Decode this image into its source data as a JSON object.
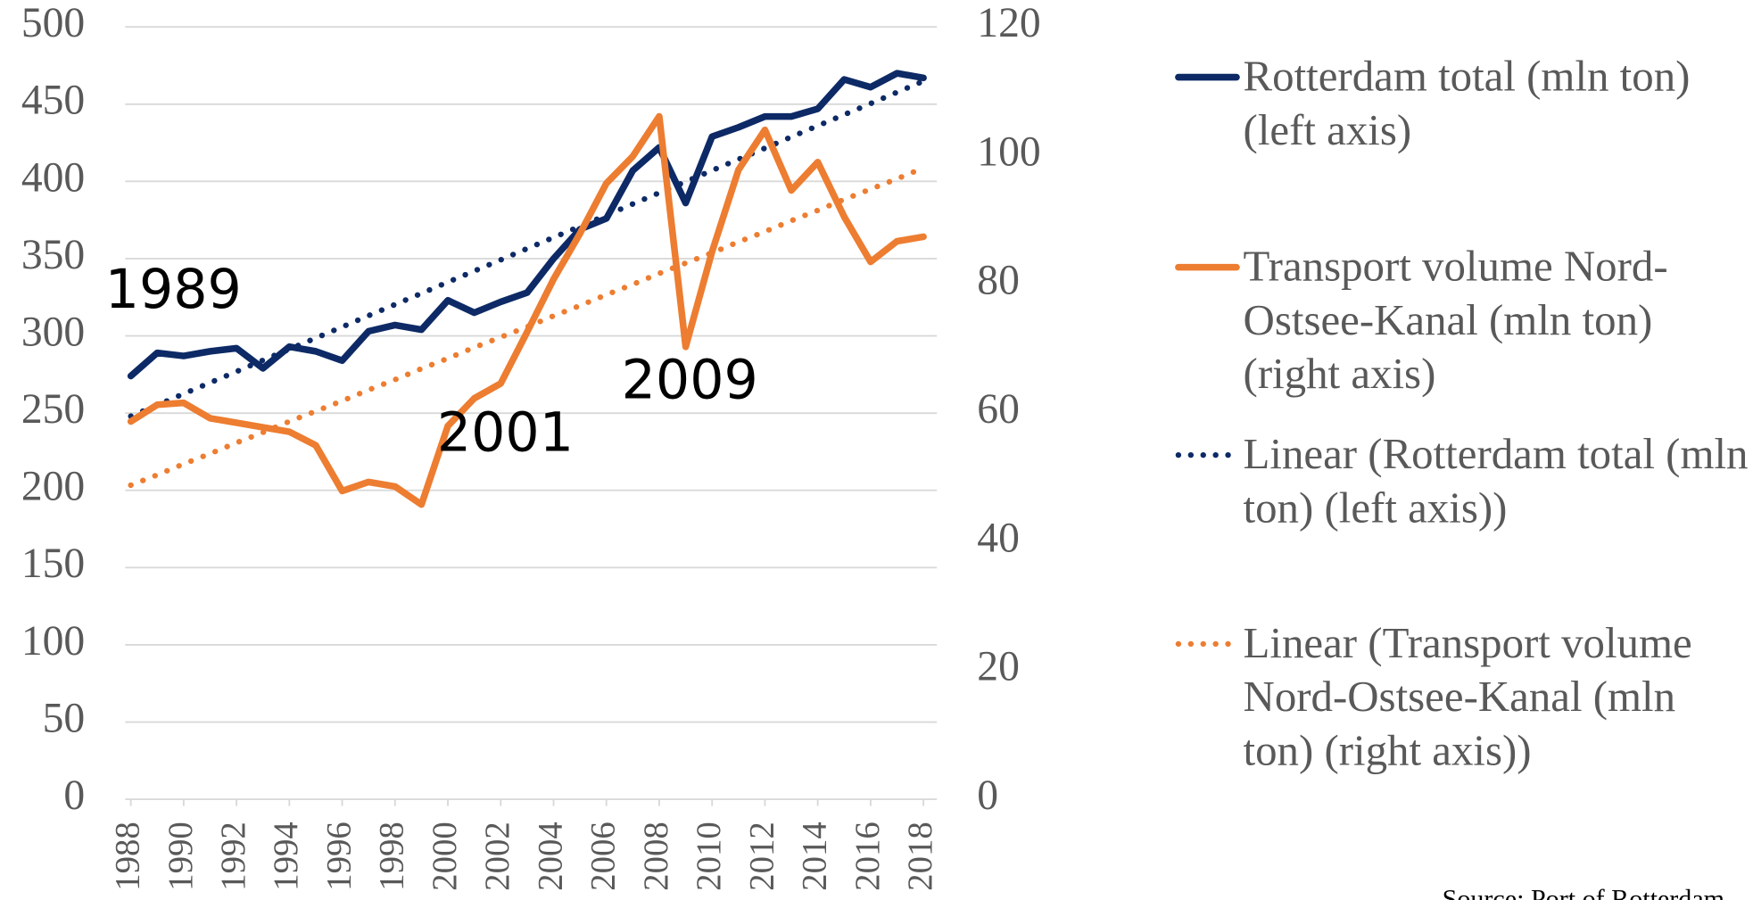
{
  "chart_data": {
    "type": "line",
    "x": [
      1988,
      1989,
      1990,
      1991,
      1992,
      1993,
      1994,
      1995,
      1996,
      1997,
      1998,
      1999,
      2000,
      2001,
      2002,
      2003,
      2004,
      2005,
      2006,
      2007,
      2008,
      2009,
      2010,
      2011,
      2012,
      2013,
      2014,
      2015,
      2016,
      2017,
      2018
    ],
    "xlim": [
      1988,
      2018
    ],
    "xticks": [
      1988,
      1990,
      1992,
      1994,
      1996,
      1998,
      2000,
      2002,
      2004,
      2006,
      2008,
      2010,
      2012,
      2014,
      2016,
      2018
    ],
    "ylim": [
      0,
      500
    ],
    "yticks": [
      0,
      50,
      100,
      150,
      200,
      250,
      300,
      350,
      400,
      450,
      500
    ],
    "y2lim": [
      0,
      120
    ],
    "y2ticks": [
      0,
      20,
      40,
      60,
      80,
      100,
      120
    ],
    "grid": true,
    "legend": "right",
    "series": [
      {
        "name": "Rotterdam total (mln ton) (left axis)",
        "color": "#0d2a66",
        "style": "solid",
        "values": [
          274,
          289,
          287,
          290,
          292,
          279,
          293,
          290,
          284,
          303,
          307,
          304,
          323,
          315,
          322,
          328,
          350,
          369,
          376,
          407,
          422,
          386,
          429,
          435,
          442,
          442,
          447,
          466,
          461,
          470,
          467
        ]
      },
      {
        "name": "Transport volume Nord-Ostsee-Kanal (mln ton) (right axis)",
        "color": "#ed7d31",
        "style": "solid",
        "axis": "y2",
        "values": [
          58.7,
          61.3,
          61.6,
          59.2,
          58.5,
          57.8,
          57.1,
          55.0,
          47.9,
          49.3,
          48.6,
          45.8,
          58.0,
          62.3,
          64.6,
          72.6,
          80.8,
          87.9,
          95.7,
          99.9,
          106.1,
          70.3,
          85.1,
          97.8,
          104.0,
          94.6,
          99.0,
          90.5,
          83.5,
          86.7,
          87.4
        ]
      },
      {
        "name": "Linear (Rotterdam total (mln ton) (left axis))",
        "color": "#0d2a66",
        "style": "dotted",
        "values": [
          248,
          255.2,
          262.5,
          269.7,
          276.9,
          284.2,
          291.4,
          298.6,
          305.8,
          313.1,
          320.3,
          327.5,
          334.8,
          342,
          349.2,
          356.5,
          363.7,
          370.9,
          378.1,
          385.4,
          392.6,
          399.8,
          407.1,
          414.3,
          421.5,
          428.8,
          436,
          443.2,
          450.4,
          457.7,
          464.9
        ]
      },
      {
        "name": "Linear (Transport volume Nord-Ostsee-Kanal (mln ton) (right axis))",
        "color": "#ed7d31",
        "style": "dotted",
        "axis": "y2",
        "values": [
          48.8,
          50.4,
          52.1,
          53.7,
          55.4,
          57.0,
          58.7,
          60.3,
          61.9,
          63.6,
          65.2,
          66.9,
          68.5,
          70.2,
          71.8,
          73.4,
          75.1,
          76.7,
          78.4,
          80.0,
          81.7,
          83.3,
          84.9,
          86.6,
          88.2,
          89.9,
          91.5,
          93.2,
          94.8,
          96.4,
          98.1
        ]
      }
    ],
    "annotations": [
      "1989",
      "2001",
      "2009"
    ],
    "source": "Source: Port of Rotterdam"
  }
}
